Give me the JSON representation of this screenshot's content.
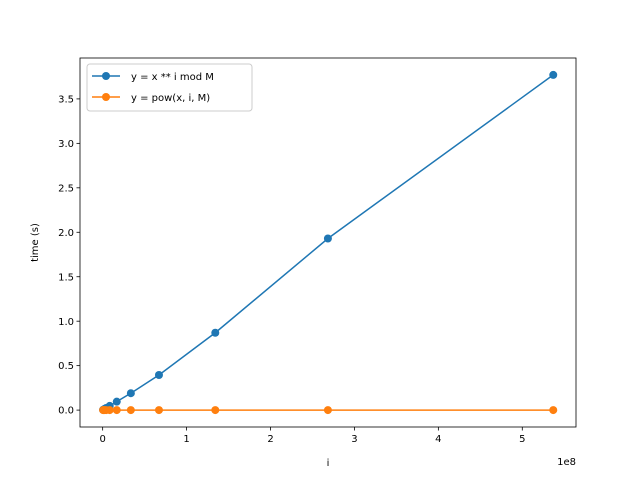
{
  "chart_data": {
    "type": "line",
    "title": "",
    "xlabel": "i",
    "ylabel": "time (s)",
    "x_offset_label": "1e8",
    "xlim": [
      -0.27,
      5.64
    ],
    "ylim": [
      -0.19,
      3.96
    ],
    "x_ticks": [
      0,
      1,
      2,
      3,
      4,
      5
    ],
    "x_tick_labels": [
      "0",
      "1",
      "2",
      "3",
      "4",
      "5"
    ],
    "y_ticks": [
      0.0,
      0.5,
      1.0,
      1.5,
      2.0,
      2.5,
      3.0,
      3.5
    ],
    "y_tick_labels": [
      "0.0",
      "0.5",
      "1.0",
      "1.5",
      "2.0",
      "2.5",
      "3.0",
      "3.5"
    ],
    "grid": false,
    "legend_placement": "upper-left",
    "x": [
      0.0052,
      0.0105,
      0.021,
      0.042,
      0.084,
      0.168,
      0.336,
      0.671,
      1.342,
      2.684,
      5.369
    ],
    "series": [
      {
        "name": "y = x ** i mod M",
        "color": "#1f77b4",
        "values": [
          0.003,
          0.006,
          0.012,
          0.024,
          0.047,
          0.095,
          0.19,
          0.395,
          0.87,
          1.93,
          3.77
        ]
      },
      {
        "name": "y = pow(x, i, M)",
        "color": "#ff7f0e",
        "values": [
          0.0,
          0.0,
          0.0,
          0.0,
          0.0,
          0.0,
          0.0,
          0.0,
          0.0,
          0.0,
          0.0
        ]
      }
    ]
  }
}
